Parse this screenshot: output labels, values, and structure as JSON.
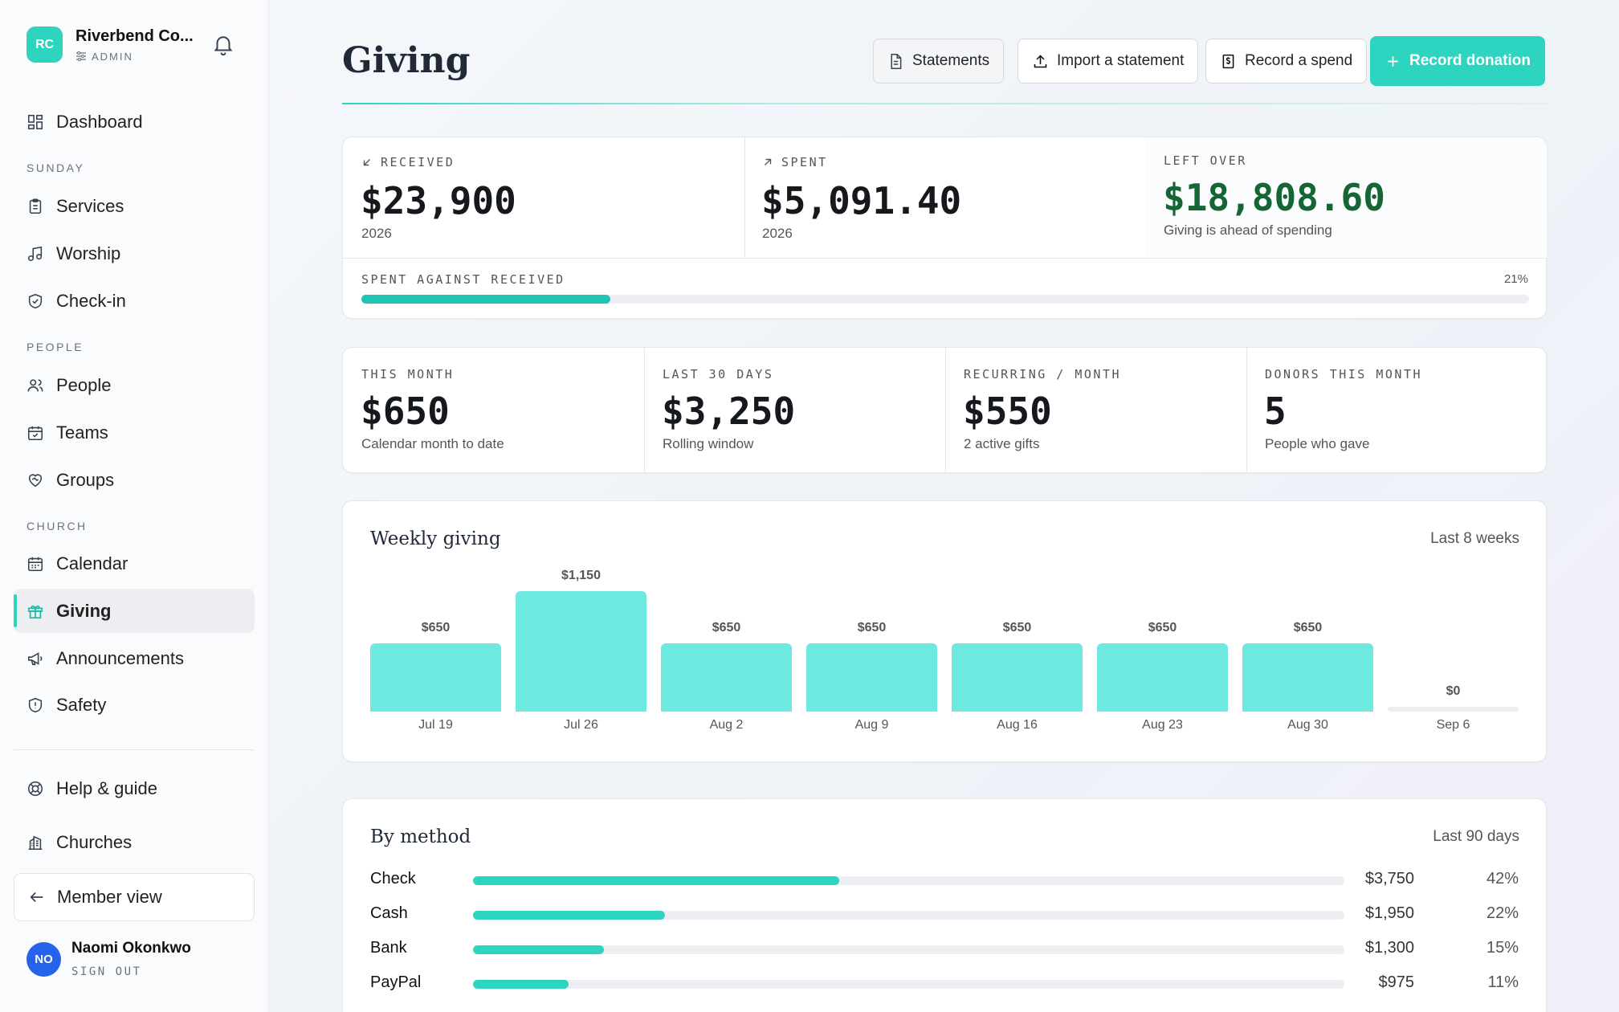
{
  "workspace": {
    "initials": "RC",
    "name": "Riverbend Co...",
    "role": "ADMIN"
  },
  "nav": {
    "dashboard": "Dashboard",
    "section_sunday": "SUNDAY",
    "services": "Services",
    "worship": "Worship",
    "checkin": "Check-in",
    "section_people": "PEOPLE",
    "people": "People",
    "teams": "Teams",
    "groups": "Groups",
    "section_church": "CHURCH",
    "calendar": "Calendar",
    "giving": "Giving",
    "announcements": "Announcements",
    "safety": "Safety",
    "help": "Help & guide",
    "churches": "Churches",
    "member_view": "Member view"
  },
  "user": {
    "initials": "NO",
    "name": "Naomi Okonkwo",
    "signout": "SIGN OUT"
  },
  "header": {
    "title": "Giving",
    "statements": "Statements",
    "import": "Import a statement",
    "record_spend": "Record a spend",
    "record_donation": "Record donation"
  },
  "summary": {
    "received": {
      "caption": "RECEIVED",
      "value": "$23,900",
      "sub": "2026"
    },
    "spent": {
      "caption": "SPENT",
      "value": "$5,091.40",
      "sub": "2026"
    },
    "left": {
      "caption": "LEFT OVER",
      "value": "$18,808.60",
      "sub": "Giving is ahead of spending"
    },
    "progress": {
      "caption": "SPENT AGAINST RECEIVED",
      "pct_label": "21%",
      "fraction": 0.213
    }
  },
  "stats": [
    {
      "caption": "THIS MONTH",
      "value": "$650",
      "sub": "Calendar month to date"
    },
    {
      "caption": "LAST 30 DAYS",
      "value": "$3,250",
      "sub": "Rolling window"
    },
    {
      "caption": "RECURRING / MONTH",
      "value": "$550",
      "sub": "2 active gifts"
    },
    {
      "caption": "DONORS THIS MONTH",
      "value": "5",
      "sub": "People who gave"
    }
  ],
  "chart_data": {
    "type": "bar",
    "title": "Weekly giving",
    "range_label": "Last 8 weeks",
    "categories": [
      "Jul 19",
      "Jul 26",
      "Aug 2",
      "Aug 9",
      "Aug 16",
      "Aug 23",
      "Aug 30",
      "Sep 6"
    ],
    "values": [
      650,
      1150,
      650,
      650,
      650,
      650,
      650,
      0
    ],
    "value_labels": [
      "$650",
      "$1,150",
      "$650",
      "$650",
      "$650",
      "$650",
      "$650",
      "$0"
    ],
    "ylim": [
      0,
      1150
    ],
    "grid": false,
    "legend": "none"
  },
  "methods": {
    "title": "By method",
    "range_label": "Last 90 days",
    "rows": [
      {
        "name": "Check",
        "amount": "$3,750",
        "pct": "42%",
        "fraction": 0.42
      },
      {
        "name": "Cash",
        "amount": "$1,950",
        "pct": "22%",
        "fraction": 0.22
      },
      {
        "name": "Bank",
        "amount": "$1,300",
        "pct": "15%",
        "fraction": 0.15
      },
      {
        "name": "PayPal",
        "amount": "$975",
        "pct": "11%",
        "fraction": 0.11
      }
    ]
  },
  "colors": {
    "accent": "#2dd4bf",
    "bar": "#6ee9e0",
    "positive": "#166534",
    "avatar": "#2563eb"
  }
}
